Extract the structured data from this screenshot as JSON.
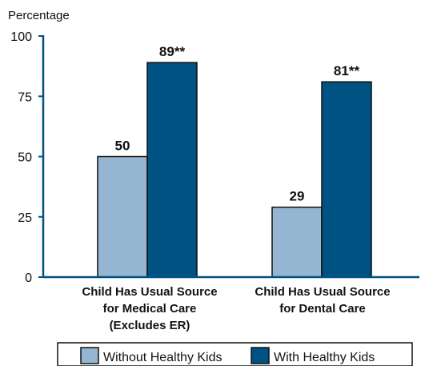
{
  "chart_data": {
    "type": "bar",
    "ylabel": "Percentage",
    "ylim": [
      0,
      100
    ],
    "yticks": [
      0,
      25,
      50,
      75,
      100
    ],
    "categories": [
      [
        "Child Has Usual Source",
        "for Medical Care",
        "(Excludes ER)"
      ],
      [
        "Child Has Usual Source",
        "for Dental Care"
      ]
    ],
    "series": [
      {
        "name": "Without Healthy Kids",
        "values": [
          50,
          29
        ],
        "labels": [
          "50",
          "29"
        ],
        "color": "#94b6d2"
      },
      {
        "name": "With Healthy Kids",
        "values": [
          89,
          81
        ],
        "labels": [
          "89**",
          "81**"
        ],
        "color": "#005282"
      }
    ],
    "grid": false,
    "legend_position": "bottom"
  }
}
